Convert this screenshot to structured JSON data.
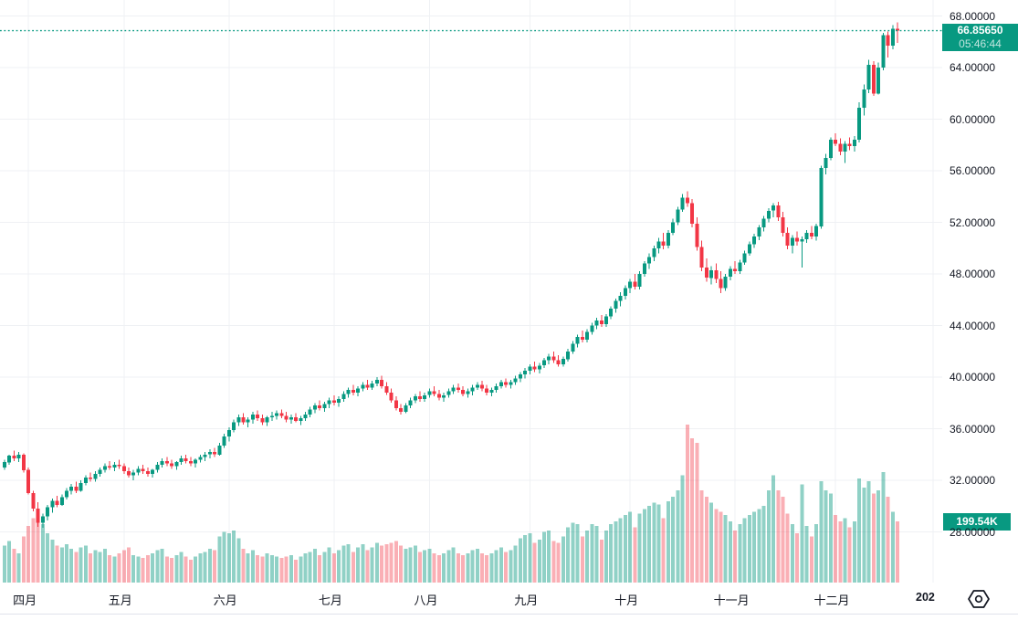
{
  "chart_data": {
    "type": "candlestick",
    "legend_position": "none",
    "grid": true,
    "colors": {
      "up": "#089981",
      "down": "#f23645",
      "volume_up": "rgba(8,153,129,0.45)",
      "volume_down": "rgba(242,54,69,0.40)",
      "grid_line": "#eff1f4",
      "axis_text": "#131722",
      "badge_background": "#089981",
      "dotted_price_line": "#089981",
      "background": "#ffffff"
    },
    "y_axis": {
      "tick_labels": [
        "68.00000",
        "64.00000",
        "60.00000",
        "56.00000",
        "52.00000",
        "48.00000",
        "44.00000",
        "40.00000",
        "36.00000",
        "32.00000",
        "28.00000"
      ],
      "tick_values": [
        68,
        64,
        60,
        56,
        52,
        48,
        44,
        40,
        36,
        32,
        28
      ],
      "range": [
        28,
        68
      ]
    },
    "x_axis": {
      "month_labels": [
        {
          "label": "四月",
          "i": 5
        },
        {
          "label": "五月",
          "i": 25
        },
        {
          "label": "六月",
          "i": 47
        },
        {
          "label": "七月",
          "i": 69
        },
        {
          "label": "八月",
          "i": 89
        },
        {
          "label": "九月",
          "i": 110
        },
        {
          "label": "十月",
          "i": 131
        },
        {
          "label": "十一月",
          "i": 153
        },
        {
          "label": "十二月",
          "i": 174
        }
      ],
      "year_label": {
        "label": "202",
        "i": 194.5
      }
    },
    "last_price": {
      "value": "66.85650",
      "countdown": "05:46:44"
    },
    "volume_label": "199.54K",
    "icons": {
      "bottom_right": "settings-icon"
    },
    "candles": [
      [
        33.0,
        33.6,
        32.8,
        33.4,
        120
      ],
      [
        33.4,
        34.0,
        33.2,
        33.9,
        135
      ],
      [
        33.9,
        34.3,
        33.5,
        33.7,
        110
      ],
      [
        33.7,
        34.2,
        33.4,
        34.0,
        95
      ],
      [
        34.0,
        34.1,
        32.6,
        32.8,
        150
      ],
      [
        32.8,
        33.0,
        30.9,
        31.0,
        185
      ],
      [
        31.0,
        31.2,
        29.6,
        29.8,
        210
      ],
      [
        29.8,
        30.3,
        28.4,
        28.7,
        195
      ],
      [
        28.7,
        29.4,
        28.3,
        29.2,
        190
      ],
      [
        29.2,
        30.1,
        28.9,
        29.9,
        160
      ],
      [
        29.9,
        30.6,
        29.5,
        30.4,
        140
      ],
      [
        30.4,
        30.8,
        29.9,
        30.1,
        120
      ],
      [
        30.1,
        30.9,
        30.0,
        30.7,
        115
      ],
      [
        30.7,
        31.4,
        30.5,
        31.2,
        125
      ],
      [
        31.2,
        31.7,
        30.9,
        31.5,
        110
      ],
      [
        31.5,
        31.9,
        31.0,
        31.2,
        100
      ],
      [
        31.2,
        32.0,
        31.1,
        31.8,
        115
      ],
      [
        31.8,
        32.4,
        31.6,
        32.2,
        120
      ],
      [
        32.2,
        32.6,
        31.9,
        32.1,
        95
      ],
      [
        32.1,
        32.7,
        31.9,
        32.5,
        105
      ],
      [
        32.5,
        33.0,
        32.3,
        32.8,
        100
      ],
      [
        32.8,
        33.3,
        32.6,
        33.1,
        110
      ],
      [
        33.1,
        33.5,
        32.8,
        33.0,
        90
      ],
      [
        33.0,
        33.4,
        32.7,
        33.2,
        85
      ],
      [
        33.2,
        33.6,
        32.9,
        33.1,
        95
      ],
      [
        33.1,
        33.3,
        32.5,
        32.7,
        105
      ],
      [
        32.7,
        33.0,
        32.2,
        32.4,
        115
      ],
      [
        32.4,
        32.8,
        32.0,
        32.6,
        90
      ],
      [
        32.6,
        33.1,
        32.4,
        32.9,
        85
      ],
      [
        32.9,
        33.2,
        32.5,
        32.7,
        80
      ],
      [
        32.7,
        33.0,
        32.3,
        32.5,
        90
      ],
      [
        32.5,
        32.9,
        32.2,
        32.8,
        95
      ],
      [
        32.8,
        33.4,
        32.6,
        33.2,
        105
      ],
      [
        33.2,
        33.7,
        33.0,
        33.5,
        110
      ],
      [
        33.5,
        33.8,
        33.1,
        33.3,
        85
      ],
      [
        33.3,
        33.6,
        32.9,
        33.1,
        80
      ],
      [
        33.1,
        33.5,
        32.8,
        33.4,
        90
      ],
      [
        33.4,
        33.9,
        33.2,
        33.7,
        100
      ],
      [
        33.7,
        34.0,
        33.3,
        33.5,
        85
      ],
      [
        33.5,
        33.8,
        33.1,
        33.3,
        75
      ],
      [
        33.3,
        33.7,
        33.0,
        33.6,
        85
      ],
      [
        33.6,
        34.0,
        33.4,
        33.8,
        95
      ],
      [
        33.8,
        34.2,
        33.5,
        34.0,
        100
      ],
      [
        34.0,
        34.4,
        33.7,
        34.2,
        110
      ],
      [
        34.2,
        34.5,
        33.8,
        34.0,
        105
      ],
      [
        34.0,
        34.9,
        33.9,
        34.7,
        150
      ],
      [
        34.7,
        35.6,
        34.5,
        35.4,
        165
      ],
      [
        35.4,
        36.1,
        35.0,
        35.9,
        160
      ],
      [
        35.9,
        36.7,
        35.7,
        36.5,
        170
      ],
      [
        36.5,
        37.1,
        36.2,
        36.9,
        145
      ],
      [
        36.9,
        37.2,
        36.3,
        36.5,
        110
      ],
      [
        36.5,
        36.9,
        36.1,
        36.7,
        95
      ],
      [
        36.7,
        37.3,
        36.4,
        37.1,
        105
      ],
      [
        37.1,
        37.4,
        36.6,
        36.8,
        90
      ],
      [
        36.8,
        37.1,
        36.3,
        36.5,
        85
      ],
      [
        36.5,
        37.0,
        36.2,
        36.9,
        95
      ],
      [
        36.9,
        37.3,
        36.6,
        37.0,
        90
      ],
      [
        37.0,
        37.4,
        36.7,
        37.2,
        85
      ],
      [
        37.2,
        37.5,
        36.8,
        37.0,
        80
      ],
      [
        37.0,
        37.3,
        36.5,
        36.7,
        85
      ],
      [
        36.7,
        37.1,
        36.4,
        36.9,
        90
      ],
      [
        36.9,
        37.2,
        36.5,
        36.6,
        75
      ],
      [
        36.6,
        37.0,
        36.3,
        36.8,
        85
      ],
      [
        36.8,
        37.3,
        36.6,
        37.1,
        95
      ],
      [
        37.1,
        37.7,
        36.9,
        37.5,
        100
      ],
      [
        37.5,
        38.0,
        37.2,
        37.8,
        110
      ],
      [
        37.8,
        38.2,
        37.4,
        37.6,
        90
      ],
      [
        37.6,
        38.1,
        37.3,
        37.9,
        100
      ],
      [
        37.9,
        38.4,
        37.6,
        38.2,
        115
      ],
      [
        38.2,
        38.6,
        37.8,
        38.0,
        95
      ],
      [
        38.0,
        38.5,
        37.7,
        38.3,
        105
      ],
      [
        38.3,
        38.9,
        38.1,
        38.7,
        120
      ],
      [
        38.7,
        39.2,
        38.4,
        39.0,
        125
      ],
      [
        39.0,
        39.4,
        38.6,
        38.8,
        100
      ],
      [
        38.8,
        39.3,
        38.5,
        39.1,
        115
      ],
      [
        39.1,
        39.6,
        38.9,
        39.4,
        125
      ],
      [
        39.4,
        39.8,
        39.0,
        39.2,
        105
      ],
      [
        39.2,
        39.7,
        39.0,
        39.5,
        115
      ],
      [
        39.5,
        40.0,
        39.3,
        39.8,
        130
      ],
      [
        39.8,
        40.1,
        39.1,
        39.3,
        120
      ],
      [
        39.3,
        39.6,
        38.6,
        38.8,
        125
      ],
      [
        38.8,
        39.1,
        38.0,
        38.2,
        130
      ],
      [
        38.2,
        38.5,
        37.4,
        37.6,
        135
      ],
      [
        37.6,
        37.9,
        37.1,
        37.3,
        120
      ],
      [
        37.3,
        38.0,
        37.2,
        37.8,
        110
      ],
      [
        37.8,
        38.4,
        37.6,
        38.2,
        115
      ],
      [
        38.2,
        38.7,
        38.0,
        38.5,
        120
      ],
      [
        38.5,
        38.9,
        38.1,
        38.3,
        100
      ],
      [
        38.3,
        38.8,
        38.1,
        38.6,
        105
      ],
      [
        38.6,
        39.1,
        38.4,
        38.9,
        110
      ],
      [
        38.9,
        39.3,
        38.5,
        38.7,
        95
      ],
      [
        38.7,
        39.0,
        38.2,
        38.4,
        90
      ],
      [
        38.4,
        38.8,
        38.1,
        38.6,
        95
      ],
      [
        38.6,
        39.1,
        38.4,
        38.9,
        105
      ],
      [
        38.9,
        39.4,
        38.7,
        39.2,
        115
      ],
      [
        39.2,
        39.5,
        38.8,
        39.0,
        95
      ],
      [
        39.0,
        39.3,
        38.5,
        38.7,
        90
      ],
      [
        38.7,
        39.1,
        38.4,
        38.9,
        95
      ],
      [
        38.9,
        39.4,
        38.6,
        39.2,
        105
      ],
      [
        39.2,
        39.6,
        39.0,
        39.4,
        110
      ],
      [
        39.4,
        39.7,
        38.9,
        39.1,
        95
      ],
      [
        39.1,
        39.4,
        38.6,
        38.8,
        90
      ],
      [
        38.8,
        39.2,
        38.5,
        39.0,
        95
      ],
      [
        39.0,
        39.5,
        38.8,
        39.3,
        105
      ],
      [
        39.3,
        39.8,
        39.1,
        39.6,
        115
      ],
      [
        39.6,
        39.9,
        39.2,
        39.4,
        100
      ],
      [
        39.4,
        39.8,
        39.1,
        39.6,
        105
      ],
      [
        39.6,
        40.1,
        39.4,
        39.9,
        120
      ],
      [
        39.9,
        40.4,
        39.6,
        40.2,
        145
      ],
      [
        40.2,
        40.7,
        39.9,
        40.5,
        155
      ],
      [
        40.5,
        41.0,
        40.2,
        40.8,
        160
      ],
      [
        40.8,
        41.2,
        40.4,
        40.6,
        130
      ],
      [
        40.6,
        41.1,
        40.3,
        40.9,
        140
      ],
      [
        40.9,
        41.5,
        40.7,
        41.3,
        165
      ],
      [
        41.3,
        41.8,
        41.0,
        41.6,
        170
      ],
      [
        41.6,
        42.0,
        41.1,
        41.3,
        135
      ],
      [
        41.3,
        41.7,
        40.8,
        41.0,
        130
      ],
      [
        41.0,
        41.6,
        40.8,
        41.4,
        150
      ],
      [
        41.4,
        42.2,
        41.2,
        42.0,
        180
      ],
      [
        42.0,
        42.8,
        41.8,
        42.6,
        195
      ],
      [
        42.6,
        43.3,
        42.3,
        43.1,
        190
      ],
      [
        43.1,
        43.6,
        42.7,
        42.9,
        150
      ],
      [
        42.9,
        43.7,
        42.7,
        43.5,
        170
      ],
      [
        43.5,
        44.2,
        43.3,
        44.0,
        190
      ],
      [
        44.0,
        44.6,
        43.7,
        44.4,
        185
      ],
      [
        44.4,
        44.8,
        43.9,
        44.1,
        140
      ],
      [
        44.1,
        44.9,
        43.9,
        44.7,
        170
      ],
      [
        44.7,
        45.5,
        44.5,
        45.3,
        190
      ],
      [
        45.3,
        46.1,
        45.0,
        45.9,
        200
      ],
      [
        45.9,
        46.6,
        45.5,
        46.3,
        210
      ],
      [
        46.3,
        47.1,
        46.0,
        46.9,
        220
      ],
      [
        46.9,
        47.6,
        46.5,
        47.4,
        230
      ],
      [
        47.4,
        48.0,
        46.8,
        47.0,
        180
      ],
      [
        47.0,
        48.2,
        46.8,
        48.0,
        225
      ],
      [
        48.0,
        49.0,
        47.8,
        48.8,
        240
      ],
      [
        48.8,
        49.6,
        48.4,
        49.3,
        250
      ],
      [
        49.3,
        50.2,
        49.0,
        50.0,
        260
      ],
      [
        50.0,
        50.8,
        49.6,
        50.5,
        255
      ],
      [
        50.5,
        51.2,
        49.9,
        50.2,
        210
      ],
      [
        50.2,
        51.4,
        50.0,
        51.2,
        265
      ],
      [
        51.2,
        52.3,
        51.0,
        52.0,
        280
      ],
      [
        52.0,
        53.2,
        51.8,
        53.0,
        300
      ],
      [
        53.0,
        54.2,
        52.8,
        53.9,
        350
      ],
      [
        53.9,
        54.4,
        53.2,
        53.5,
        515
      ],
      [
        53.5,
        53.8,
        51.6,
        51.9,
        470
      ],
      [
        51.9,
        52.4,
        49.8,
        50.1,
        455
      ],
      [
        50.1,
        50.6,
        48.2,
        48.5,
        300
      ],
      [
        48.5,
        49.2,
        47.4,
        47.7,
        280
      ],
      [
        47.7,
        48.6,
        47.2,
        48.3,
        260
      ],
      [
        48.3,
        48.8,
        47.3,
        47.6,
        240
      ],
      [
        47.6,
        48.2,
        46.5,
        46.9,
        230
      ],
      [
        46.9,
        48.0,
        46.7,
        47.8,
        220
      ],
      [
        47.8,
        48.6,
        47.5,
        48.4,
        200
      ],
      [
        48.4,
        49.0,
        48.0,
        48.2,
        170
      ],
      [
        48.2,
        49.1,
        48.0,
        48.9,
        190
      ],
      [
        48.9,
        49.8,
        48.7,
        49.6,
        210
      ],
      [
        49.6,
        50.5,
        49.4,
        50.3,
        220
      ],
      [
        50.3,
        51.1,
        50.0,
        50.9,
        230
      ],
      [
        50.9,
        51.8,
        50.6,
        51.6,
        240
      ],
      [
        51.6,
        52.5,
        51.3,
        52.3,
        250
      ],
      [
        52.3,
        53.1,
        52.0,
        52.9,
        300
      ],
      [
        52.9,
        53.5,
        52.4,
        53.3,
        350
      ],
      [
        53.3,
        53.6,
        52.1,
        52.4,
        300
      ],
      [
        52.4,
        52.8,
        50.9,
        51.2,
        280
      ],
      [
        51.2,
        51.6,
        49.9,
        50.2,
        225
      ],
      [
        50.2,
        51.0,
        49.6,
        50.8,
        190
      ],
      [
        50.8,
        51.3,
        50.2,
        50.5,
        160
      ],
      [
        50.5,
        50.9,
        48.5,
        50.7,
        320
      ],
      [
        50.7,
        51.4,
        50.4,
        51.2,
        185
      ],
      [
        51.2,
        51.7,
        50.7,
        50.9,
        150
      ],
      [
        50.9,
        51.9,
        50.6,
        51.7,
        190
      ],
      [
        51.7,
        56.4,
        51.5,
        56.2,
        330
      ],
      [
        56.2,
        57.3,
        55.7,
        57.0,
        300
      ],
      [
        57.0,
        58.6,
        56.8,
        58.4,
        290
      ],
      [
        58.4,
        58.9,
        57.9,
        58.1,
        220
      ],
      [
        58.1,
        58.5,
        57.2,
        57.5,
        200
      ],
      [
        57.5,
        58.3,
        56.6,
        58.1,
        210
      ],
      [
        58.1,
        58.6,
        57.6,
        57.9,
        180
      ],
      [
        57.9,
        58.7,
        57.5,
        58.4,
        200
      ],
      [
        58.4,
        61.3,
        58.2,
        60.9,
        340
      ],
      [
        60.9,
        62.7,
        60.3,
        62.3,
        310
      ],
      [
        62.3,
        64.6,
        62.0,
        64.2,
        330
      ],
      [
        64.2,
        64.5,
        61.8,
        62.0,
        290
      ],
      [
        62.0,
        64.4,
        61.9,
        64.0,
        300
      ],
      [
        64.0,
        66.7,
        63.8,
        66.5,
        360
      ],
      [
        66.5,
        66.8,
        64.8,
        65.7,
        280
      ],
      [
        65.7,
        67.3,
        65.4,
        67.0,
        230
      ],
      [
        67.0,
        67.5,
        65.9,
        66.86,
        199.54
      ]
    ]
  }
}
